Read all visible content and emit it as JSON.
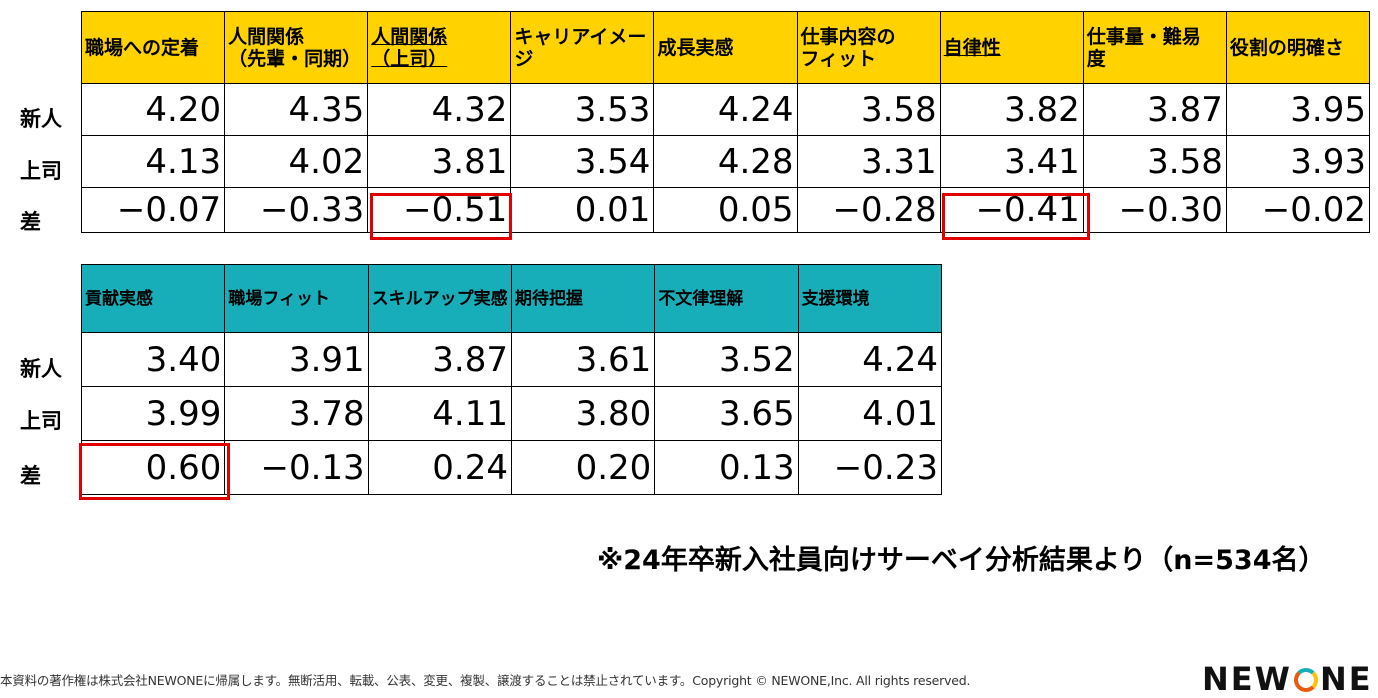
{
  "table1": {
    "headers": [
      {
        "l1": "職場への定着",
        "l2": "",
        "u": false
      },
      {
        "l1": "人間関係",
        "l2": "（先輩・同期）",
        "u": false
      },
      {
        "l1": "人間関係",
        "l2": "（上司）",
        "u": true
      },
      {
        "l1": "キャリアイメー",
        "l2": "ジ",
        "u": false
      },
      {
        "l1": "成長実感",
        "l2": "",
        "u": false
      },
      {
        "l1": "仕事内容の",
        "l2": "フィット",
        "u": false
      },
      {
        "l1": "自律性",
        "l2": "",
        "u": true
      },
      {
        "l1": "仕事量・難易",
        "l2": "度",
        "u": false
      },
      {
        "l1": "役割の明確さ",
        "l2": "",
        "u": false
      }
    ],
    "newcomer": [
      "4.20",
      "4.35",
      "4.32",
      "3.53",
      "4.24",
      "3.58",
      "3.82",
      "3.87",
      "3.95"
    ],
    "boss": [
      "4.13",
      "4.02",
      "3.81",
      "3.54",
      "4.28",
      "3.31",
      "3.41",
      "3.58",
      "3.93"
    ],
    "diff": [
      "−0.07",
      "−0.33",
      "−0.51",
      "0.01",
      "0.05",
      "−0.28",
      "−0.41",
      "−0.30",
      "−0.02"
    ]
  },
  "table2": {
    "headers": [
      "貢献実感",
      "職場フィット",
      "スキルアップ実感",
      "期待把握",
      "不文律理解",
      "支援環境"
    ],
    "newcomer": [
      "3.40",
      "3.91",
      "3.87",
      "3.61",
      "3.52",
      "4.24"
    ],
    "boss": [
      "3.99",
      "3.78",
      "4.11",
      "3.80",
      "3.65",
      "4.01"
    ],
    "diff": [
      "0.60",
      "−0.13",
      "0.24",
      "0.20",
      "0.13",
      "−0.23"
    ]
  },
  "row_labels": {
    "newcomer": "新人",
    "boss": "上司",
    "diff": "差"
  },
  "note": "※24年卒新入社員向けサーベイ分析結果より（n=534名）",
  "copyright": "本資料の著作権は株式会社NEWONEに帰属します。無断活用、転載、公表、変更、複製、譲渡することは禁止されています。Copyright © NEWONE,Inc.  All rights reserved.",
  "logo": {
    "pre": "NEW",
    "post": "NE"
  },
  "colors": {
    "header1": "#ffd200",
    "header2": "#17aeb9",
    "highlight": "#e00000"
  }
}
